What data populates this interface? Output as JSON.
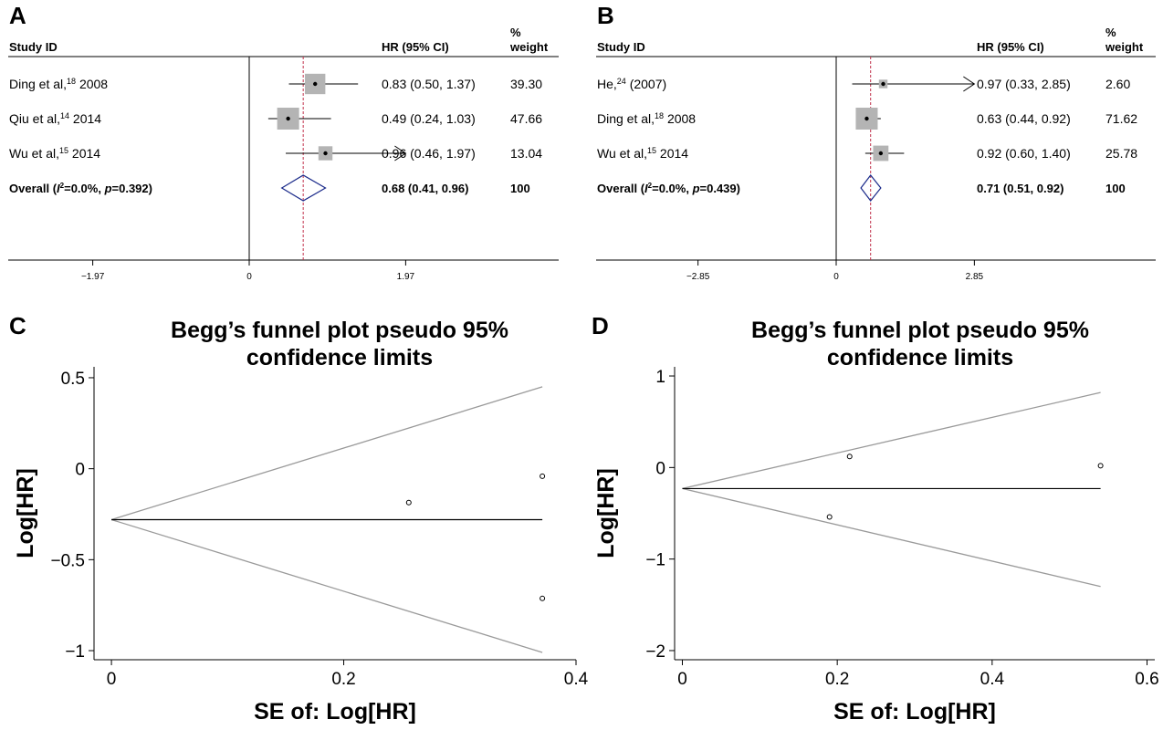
{
  "chart_data": [
    {
      "panel": "A",
      "type": "forest",
      "headers": {
        "study": "Study ID",
        "hr": "HR (95% CI)",
        "weight_line1": "%",
        "weight_line2": "weight"
      },
      "rows": [
        {
          "sup_pre": "Ding et al,",
          "sup": "18",
          "sup_post": " 2008",
          "hr": 0.83,
          "lo": 0.5,
          "hi": 1.37,
          "ci_text": "0.83 (0.50, 1.37)",
          "weight": "39.30",
          "bold": false
        },
        {
          "sup_pre": "Qiu et al,",
          "sup": "14",
          "sup_post": " 2014",
          "hr": 0.49,
          "lo": 0.24,
          "hi": 1.03,
          "ci_text": "0.49 (0.24, 1.03)",
          "weight": "47.66",
          "bold": false
        },
        {
          "sup_pre": "Wu et al,",
          "sup": "15",
          "sup_post": " 2014",
          "hr": 0.96,
          "lo": 0.46,
          "hi": 1.97,
          "ci_text": "0.96 (0.46, 1.97)",
          "weight": "13.04",
          "bold": false,
          "arrow": true
        }
      ],
      "overall": {
        "label_pre": "Overall (",
        "label_i": "I",
        "label_sup": "2",
        "label_post": "=0.0%, ",
        "label_p": "p",
        "label_end": "=0.392)",
        "hr": 0.68,
        "lo": 0.41,
        "hi": 0.96,
        "ci_text": "0.68 (0.41, 0.96)",
        "weight": "100"
      },
      "axis": {
        "min": -3.0,
        "max": 3.0,
        "ticks": [
          -1.97,
          0,
          1.97
        ],
        "tick_labels": [
          "−1.97",
          "0",
          "1.97"
        ]
      }
    },
    {
      "panel": "B",
      "type": "forest",
      "headers": {
        "study": "Study ID",
        "hr": "HR (95% CI)",
        "weight_line1": "%",
        "weight_line2": "weight"
      },
      "rows": [
        {
          "sup_pre": "He,",
          "sup": "24",
          "sup_post": " (2007)",
          "hr": 0.97,
          "lo": 0.33,
          "hi": 2.85,
          "ci_text": "0.97 (0.33, 2.85)",
          "weight": "2.60",
          "bold": false,
          "arrow": true
        },
        {
          "sup_pre": "Ding et al,",
          "sup": "18",
          "sup_post": " 2008",
          "hr": 0.63,
          "lo": 0.44,
          "hi": 0.92,
          "ci_text": "0.63 (0.44, 0.92)",
          "weight": "71.62",
          "bold": false
        },
        {
          "sup_pre": "Wu et al,",
          "sup": "15",
          "sup_post": " 2014",
          "hr": 0.92,
          "lo": 0.6,
          "hi": 1.4,
          "ci_text": "0.92 (0.60, 1.40)",
          "weight": "25.78",
          "bold": false
        }
      ],
      "overall": {
        "label_pre": "Overall (",
        "label_i": "I",
        "label_sup": "2",
        "label_post": "=0.0%, ",
        "label_p": "p",
        "label_end": "=0.439)",
        "hr": 0.71,
        "lo": 0.51,
        "hi": 0.92,
        "ci_text": "0.71 (0.51, 0.92)",
        "weight": "100"
      },
      "axis": {
        "min": -4.5,
        "max": 4.5,
        "ticks": [
          -2.85,
          0,
          2.85
        ],
        "tick_labels": [
          "−2.85",
          "0",
          "2.85"
        ]
      }
    },
    {
      "panel": "C",
      "type": "scatter",
      "title_lines": [
        "Begg’s funnel plot pseudo 95%",
        "confidence limits"
      ],
      "xlabel": "SE of: Log[HR]",
      "ylabel": "Log[HR]",
      "xlim": [
        -0.015,
        0.4
      ],
      "ylim": [
        -1.05,
        0.56
      ],
      "xticks": [
        0,
        0.2,
        0.4
      ],
      "xtick_labels": [
        "0",
        "0.2",
        "0.4"
      ],
      "yticks": [
        -1,
        -0.5,
        0,
        0.5
      ],
      "ytick_labels": [
        "−1",
        "−0.5",
        "0",
        "0.5"
      ],
      "summary": -0.28,
      "se_max": 0.371,
      "upper_end": 0.45,
      "lower_end": -1.01,
      "points": [
        {
          "x": 0.256,
          "y": -0.186
        },
        {
          "x": 0.371,
          "y": -0.041
        },
        {
          "x": 0.371,
          "y": -0.713
        }
      ]
    },
    {
      "panel": "D",
      "type": "scatter",
      "title_lines": [
        "Begg’s funnel plot pseudo 95%",
        "confidence limits"
      ],
      "xlabel": "SE of: Log[HR]",
      "ylabel": "Log[HR]",
      "xlim": [
        -0.01,
        0.61
      ],
      "ylim": [
        -2.1,
        1.1
      ],
      "xticks": [
        0,
        0.2,
        0.4,
        0.6
      ],
      "xtick_labels": [
        "0",
        "0.2",
        "0.4",
        "0.6"
      ],
      "yticks": [
        -2,
        -1,
        0,
        1
      ],
      "ytick_labels": [
        "−2",
        "−1",
        "0",
        "1"
      ],
      "summary": -0.23,
      "se_max": 0.54,
      "upper_end": 0.82,
      "lower_end": -1.3,
      "points": [
        {
          "x": 0.19,
          "y": -0.54
        },
        {
          "x": 0.216,
          "y": 0.12
        },
        {
          "x": 0.54,
          "y": 0.02
        }
      ]
    }
  ]
}
